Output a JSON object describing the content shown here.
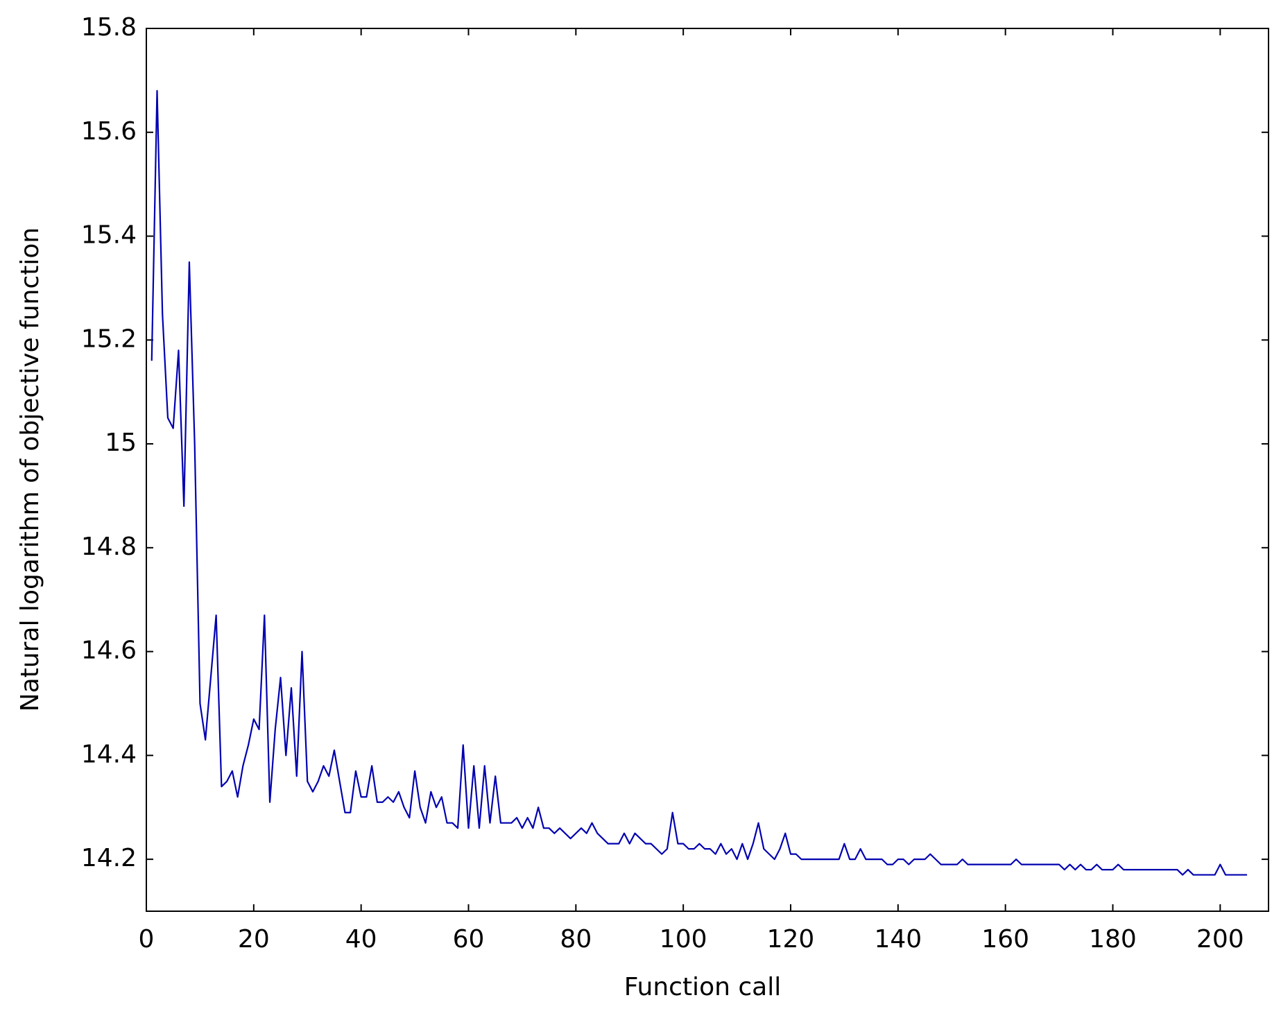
{
  "chart_data": {
    "type": "line",
    "x_label": "Function call",
    "y_label": "Natural logarithm of objective function",
    "x": [
      1,
      2,
      3,
      4,
      5,
      6,
      7,
      8,
      9,
      10,
      11,
      12,
      13,
      14,
      15,
      16,
      17,
      18,
      19,
      20,
      21,
      22,
      23,
      24,
      25,
      26,
      27,
      28,
      29,
      30,
      31,
      32,
      33,
      34,
      35,
      36,
      37,
      38,
      39,
      40,
      41,
      42,
      43,
      44,
      45,
      46,
      47,
      48,
      49,
      50,
      51,
      52,
      53,
      54,
      55,
      56,
      57,
      58,
      59,
      60,
      61,
      62,
      63,
      64,
      65,
      66,
      67,
      68,
      69,
      70,
      71,
      72,
      73,
      74,
      75,
      76,
      77,
      78,
      79,
      80,
      81,
      82,
      83,
      84,
      85,
      86,
      87,
      88,
      89,
      90,
      91,
      92,
      93,
      94,
      95,
      96,
      97,
      98,
      99,
      100,
      101,
      102,
      103,
      104,
      105,
      106,
      107,
      108,
      109,
      110,
      111,
      112,
      113,
      114,
      115,
      116,
      117,
      118,
      119,
      120,
      121,
      122,
      123,
      124,
      125,
      126,
      127,
      128,
      129,
      130,
      131,
      132,
      133,
      134,
      135,
      136,
      137,
      138,
      139,
      140,
      141,
      142,
      143,
      144,
      145,
      146,
      147,
      148,
      149,
      150,
      151,
      152,
      153,
      154,
      155,
      156,
      157,
      158,
      159,
      160,
      161,
      162,
      163,
      164,
      165,
      166,
      167,
      168,
      169,
      170,
      171,
      172,
      173,
      174,
      175,
      176,
      177,
      178,
      179,
      180,
      181,
      182,
      183,
      184,
      185,
      186,
      187,
      188,
      189,
      190,
      191,
      192,
      193,
      194,
      195,
      196,
      197,
      198,
      199,
      200,
      201,
      202,
      203,
      204,
      205
    ],
    "series": [
      {
        "color": "#0000b0",
        "values": [
          15.16,
          15.68,
          15.25,
          15.05,
          15.03,
          15.18,
          14.88,
          15.35,
          15.0,
          14.5,
          14.43,
          14.55,
          14.67,
          14.34,
          14.35,
          14.37,
          14.32,
          14.38,
          14.42,
          14.47,
          14.45,
          14.67,
          14.31,
          14.45,
          14.55,
          14.4,
          14.53,
          14.36,
          14.6,
          14.35,
          14.33,
          14.35,
          14.38,
          14.36,
          14.41,
          14.35,
          14.29,
          14.29,
          14.37,
          14.32,
          14.32,
          14.38,
          14.31,
          14.31,
          14.32,
          14.31,
          14.33,
          14.3,
          14.28,
          14.37,
          14.3,
          14.27,
          14.33,
          14.3,
          14.32,
          14.27,
          14.27,
          14.26,
          14.42,
          14.26,
          14.38,
          14.26,
          14.38,
          14.27,
          14.36,
          14.27,
          14.27,
          14.27,
          14.28,
          14.26,
          14.28,
          14.26,
          14.3,
          14.26,
          14.26,
          14.25,
          14.26,
          14.25,
          14.24,
          14.25,
          14.26,
          14.25,
          14.27,
          14.25,
          14.24,
          14.23,
          14.23,
          14.23,
          14.25,
          14.23,
          14.25,
          14.24,
          14.23,
          14.23,
          14.22,
          14.21,
          14.22,
          14.29,
          14.23,
          14.23,
          14.22,
          14.22,
          14.23,
          14.22,
          14.22,
          14.21,
          14.23,
          14.21,
          14.22,
          14.2,
          14.23,
          14.2,
          14.23,
          14.27,
          14.22,
          14.21,
          14.2,
          14.22,
          14.25,
          14.21,
          14.21,
          14.2,
          14.2,
          14.2,
          14.2,
          14.2,
          14.2,
          14.2,
          14.2,
          14.23,
          14.2,
          14.2,
          14.22,
          14.2,
          14.2,
          14.2,
          14.2,
          14.19,
          14.19,
          14.2,
          14.2,
          14.19,
          14.2,
          14.2,
          14.2,
          14.21,
          14.2,
          14.19,
          14.19,
          14.19,
          14.19,
          14.2,
          14.19,
          14.19,
          14.19,
          14.19,
          14.19,
          14.19,
          14.19,
          14.19,
          14.19,
          14.2,
          14.19,
          14.19,
          14.19,
          14.19,
          14.19,
          14.19,
          14.19,
          14.19,
          14.18,
          14.19,
          14.18,
          14.19,
          14.18,
          14.18,
          14.19,
          14.18,
          14.18,
          14.18,
          14.19,
          14.18,
          14.18,
          14.18,
          14.18,
          14.18,
          14.18,
          14.18,
          14.18,
          14.18,
          14.18,
          14.18,
          14.17,
          14.18,
          14.17,
          14.17,
          14.17,
          14.17,
          14.17,
          14.19,
          14.17,
          14.17,
          14.17,
          14.17,
          14.17
        ]
      }
    ],
    "xlim": [
      0,
      209
    ],
    "xticks": [
      0,
      20,
      40,
      60,
      80,
      100,
      120,
      140,
      160,
      180,
      200
    ],
    "ylim": [
      14.1,
      15.8
    ],
    "yticks": [
      14.2,
      14.4,
      14.6,
      14.8,
      15,
      15.2,
      15.4,
      15.6,
      15.8
    ],
    "grid": false
  }
}
